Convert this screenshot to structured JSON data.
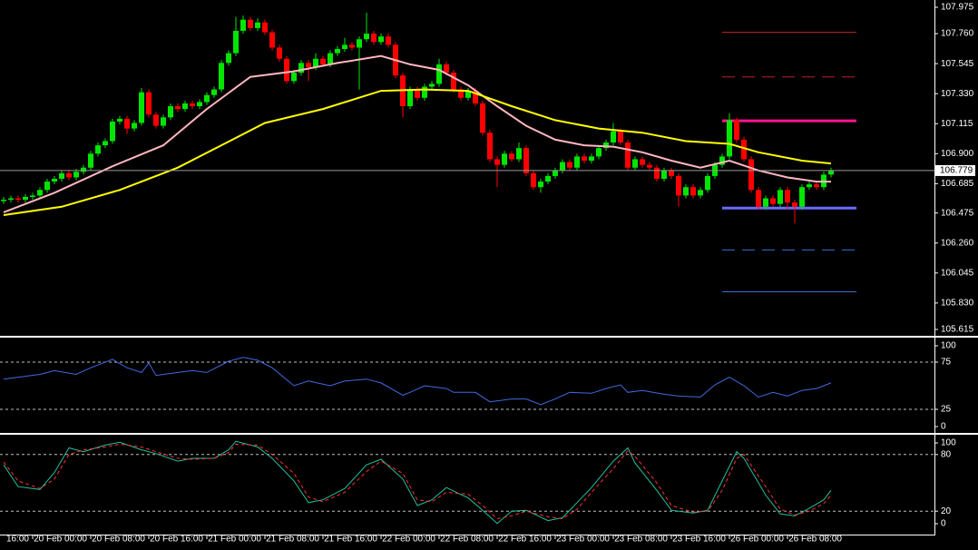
{
  "chart_data": [
    {
      "type": "candlestick",
      "up_color": "#00e600",
      "down_color": "#ff0000",
      "xlim": [
        -0.5,
        128.25
      ],
      "xticks": [
        {
          "value": -4,
          "label": "16:00"
        },
        {
          "value": 4,
          "label": "20 Feb 00:00"
        },
        {
          "value": 12,
          "label": "20 Feb 08:00"
        },
        {
          "value": 20,
          "label": "20 Feb 16:00"
        },
        {
          "value": 28,
          "label": "21 Feb 00:00"
        },
        {
          "value": 36,
          "label": "21 Feb 08:00"
        },
        {
          "value": 44,
          "label": "21 Feb 16:00"
        },
        {
          "value": 52,
          "label": "22 Feb 00:00"
        },
        {
          "value": 60,
          "label": "22 Feb 08:00"
        },
        {
          "value": 68,
          "label": "22 Feb 16:00"
        },
        {
          "value": 76,
          "label": "23 Feb 00:00"
        },
        {
          "value": 84,
          "label": "23 Feb 08:00"
        },
        {
          "value": 92,
          "label": "23 Feb 16:00"
        },
        {
          "value": 100,
          "label": "26 Feb 00:00"
        },
        {
          "value": 108,
          "label": "26 Feb 08:00"
        }
      ],
      "ylim": [
        105.595,
        108.001
      ],
      "yticks": [
        107.975,
        {
          "value": 107.76,
          "label": "107.760"
        },
        107.545,
        {
          "value": 107.33,
          "label": "107.330"
        },
        107.115,
        {
          "value": 106.9,
          "label": "106.900"
        },
        106.685,
        106.475,
        {
          "value": 106.26,
          "label": "106.260"
        },
        106.045,
        {
          "value": 105.83,
          "label": "105.830"
        },
        105.615
      ],
      "current_price": 106.779,
      "open": [
        106.56,
        106.57,
        106.58,
        106.57,
        106.59,
        106.6,
        106.64,
        106.7,
        106.72,
        106.76,
        106.73,
        106.77,
        106.8,
        106.9,
        106.96,
        106.99,
        107.13,
        107.15,
        107.08,
        107.12,
        107.34,
        107.18,
        107.1,
        107.16,
        107.24,
        107.22,
        107.26,
        107.24,
        107.27,
        107.32,
        107.36,
        107.55,
        107.62,
        107.78,
        107.86,
        107.8,
        107.84,
        107.77,
        107.66,
        107.58,
        107.42,
        107.48,
        107.55,
        107.52,
        107.58,
        107.54,
        107.62,
        107.65,
        107.68,
        107.66,
        107.72,
        107.76,
        107.7,
        107.74,
        107.68,
        107.46,
        107.24,
        107.36,
        107.3,
        107.38,
        107.4,
        107.54,
        107.48,
        107.36,
        107.3,
        107.35,
        107.26,
        107.05,
        106.86,
        106.82,
        106.9,
        106.86,
        106.94,
        106.76,
        106.66,
        106.7,
        106.74,
        106.78,
        106.84,
        106.8,
        106.88,
        106.85,
        106.88,
        106.94,
        106.98,
        107.06,
        106.98,
        106.8,
        106.86,
        106.82,
        106.8,
        106.72,
        106.78,
        106.74,
        106.6,
        106.66,
        106.6,
        106.64,
        106.74,
        106.82,
        106.88,
        107.14,
        107.0,
        106.86,
        106.64,
        106.52,
        106.58,
        106.54,
        106.64,
        106.55,
        106.52,
        106.66,
        106.68,
        106.66,
        106.75
      ],
      "high": [
        106.59,
        106.6,
        106.6,
        106.61,
        106.62,
        106.66,
        106.72,
        106.74,
        106.78,
        106.78,
        106.79,
        106.82,
        106.92,
        106.98,
        107.01,
        107.15,
        107.17,
        107.17,
        107.14,
        107.37,
        107.36,
        107.2,
        107.18,
        107.26,
        107.26,
        107.28,
        107.28,
        107.29,
        107.34,
        107.38,
        107.57,
        107.64,
        107.88,
        107.89,
        107.88,
        107.87,
        107.86,
        107.79,
        107.68,
        107.6,
        107.5,
        107.57,
        107.57,
        107.62,
        107.6,
        107.64,
        107.67,
        107.73,
        107.7,
        107.74,
        107.91,
        107.78,
        107.76,
        107.76,
        107.7,
        107.48,
        107.38,
        107.38,
        107.4,
        107.42,
        107.58,
        107.56,
        107.5,
        107.38,
        107.37,
        107.37,
        107.28,
        107.07,
        106.88,
        106.92,
        106.92,
        106.98,
        106.96,
        106.78,
        106.72,
        106.76,
        106.8,
        106.86,
        106.86,
        106.9,
        106.9,
        106.9,
        106.96,
        107.0,
        107.12,
        107.08,
        107.0,
        106.88,
        106.88,
        106.84,
        106.82,
        106.8,
        106.8,
        106.76,
        106.68,
        106.68,
        106.66,
        106.76,
        106.84,
        106.9,
        107.19,
        107.16,
        107.02,
        106.88,
        106.66,
        106.6,
        106.6,
        106.66,
        106.66,
        106.57,
        106.68,
        106.7,
        106.7,
        106.77,
        106.8
      ],
      "low": [
        106.54,
        106.55,
        106.55,
        106.55,
        106.57,
        106.58,
        106.62,
        106.68,
        106.7,
        106.71,
        106.71,
        106.75,
        106.78,
        106.88,
        106.94,
        106.97,
        107.11,
        107.04,
        107.06,
        107.1,
        107.16,
        107.08,
        107.08,
        107.14,
        107.2,
        107.2,
        107.22,
        107.22,
        107.25,
        107.3,
        107.34,
        107.53,
        107.6,
        107.76,
        107.78,
        107.78,
        107.75,
        107.64,
        107.56,
        107.4,
        107.4,
        107.46,
        107.42,
        107.5,
        107.52,
        107.52,
        107.6,
        107.63,
        107.64,
        107.36,
        107.7,
        107.68,
        107.68,
        107.66,
        107.44,
        107.16,
        107.22,
        107.28,
        107.28,
        107.36,
        107.38,
        107.46,
        107.34,
        107.28,
        107.28,
        107.24,
        107.03,
        106.84,
        106.66,
        106.8,
        106.84,
        106.84,
        106.74,
        106.64,
        106.62,
        106.68,
        106.72,
        106.76,
        106.78,
        106.78,
        106.83,
        106.83,
        106.86,
        106.92,
        106.96,
        106.96,
        106.78,
        106.78,
        106.8,
        106.78,
        106.7,
        106.7,
        106.72,
        106.52,
        106.58,
        106.58,
        106.58,
        106.62,
        106.72,
        106.8,
        106.86,
        106.98,
        106.84,
        106.62,
        106.5,
        106.5,
        106.52,
        106.52,
        106.5,
        106.4,
        106.5,
        106.64,
        106.64,
        106.64,
        106.73
      ],
      "close": [
        106.57,
        106.58,
        106.57,
        106.59,
        106.6,
        106.64,
        106.7,
        106.72,
        106.76,
        106.73,
        106.77,
        106.8,
        106.9,
        106.96,
        106.99,
        107.13,
        107.15,
        107.08,
        107.12,
        107.34,
        107.18,
        107.1,
        107.16,
        107.24,
        107.22,
        107.26,
        107.24,
        107.27,
        107.32,
        107.36,
        107.55,
        107.62,
        107.78,
        107.86,
        107.8,
        107.84,
        107.77,
        107.66,
        107.58,
        107.42,
        107.48,
        107.55,
        107.52,
        107.58,
        107.54,
        107.62,
        107.65,
        107.68,
        107.66,
        107.72,
        107.76,
        107.7,
        107.74,
        107.68,
        107.46,
        107.24,
        107.36,
        107.3,
        107.38,
        107.4,
        107.54,
        107.48,
        107.36,
        107.3,
        107.35,
        107.26,
        107.05,
        106.86,
        106.82,
        106.9,
        106.86,
        106.94,
        106.76,
        106.66,
        106.7,
        106.74,
        106.78,
        106.84,
        106.8,
        106.88,
        106.85,
        106.88,
        106.94,
        106.98,
        107.06,
        106.98,
        106.8,
        106.86,
        106.82,
        106.8,
        106.72,
        106.78,
        106.74,
        106.6,
        106.66,
        106.6,
        106.64,
        106.74,
        106.82,
        106.88,
        107.14,
        107.0,
        106.86,
        106.64,
        106.52,
        106.58,
        106.54,
        106.64,
        106.55,
        106.52,
        106.66,
        106.68,
        106.66,
        106.75,
        106.779
      ],
      "lines": [
        {
          "color": "#ffb6c1",
          "x": [
            0,
            7,
            15,
            22,
            28,
            34,
            40,
            46,
            52,
            56,
            60,
            64,
            68,
            72,
            76,
            80,
            84,
            88,
            92,
            96,
            100,
            104,
            108,
            112,
            114
          ],
          "values": [
            106.48,
            106.62,
            106.81,
            106.96,
            107.22,
            107.45,
            107.49,
            107.55,
            107.6,
            107.54,
            107.5,
            107.39,
            107.24,
            107.1,
            107.0,
            106.96,
            106.95,
            106.91,
            106.85,
            106.8,
            106.85,
            106.78,
            106.73,
            106.7,
            106.7
          ]
        },
        {
          "color": "#ffff00",
          "x": [
            0,
            8,
            16,
            24,
            30,
            36,
            44,
            52,
            58,
            64,
            70,
            76,
            82,
            88,
            94,
            100,
            104,
            110,
            114
          ],
          "values": [
            106.46,
            106.52,
            106.64,
            106.8,
            106.96,
            107.12,
            107.22,
            107.35,
            107.36,
            107.35,
            107.24,
            107.14,
            107.08,
            107.05,
            106.99,
            106.97,
            106.91,
            106.85,
            106.83
          ]
        }
      ],
      "levels": [
        {
          "value": 107.77,
          "color": "#c02020",
          "style": "solid"
        },
        {
          "value": 107.45,
          "color": "#c02020",
          "style": "dashed"
        },
        {
          "value": 107.135,
          "color": "#ff1493",
          "style": "thick"
        },
        {
          "value": 106.51,
          "color": "#6a6aff",
          "style": "thick"
        },
        {
          "value": 106.21,
          "color": "#3a6fd8",
          "style": "dashed"
        },
        {
          "value": 105.91,
          "color": "#3a6fd8",
          "style": "solid"
        }
      ]
    },
    {
      "type": "line",
      "ylim": [
        0,
        100
      ],
      "yticks": [
        100,
        75,
        25,
        0
      ],
      "series": [
        {
          "color": "#4169e1",
          "style": "solid",
          "x": [
            0,
            5,
            7,
            10,
            12,
            15,
            17,
            19,
            20,
            21,
            24,
            26,
            28,
            31,
            33,
            35,
            37,
            40,
            42,
            45,
            47,
            50,
            52,
            55,
            56,
            58,
            61,
            62,
            65,
            67,
            70,
            72,
            74,
            76,
            78,
            81,
            83,
            85,
            86,
            88,
            91,
            93,
            96,
            98,
            100,
            102,
            104,
            106,
            108,
            110,
            112,
            114
          ],
          "values": [
            57,
            62,
            66,
            62,
            69,
            78,
            69,
            64,
            74,
            61,
            64,
            66,
            64,
            76,
            80,
            77,
            69,
            50,
            55,
            50,
            55,
            57,
            53,
            40,
            43,
            50,
            47,
            43,
            43,
            33,
            36,
            36,
            30,
            36,
            43,
            42,
            47,
            51,
            43,
            45,
            41,
            39,
            38,
            51,
            59,
            50,
            38,
            43,
            39,
            45,
            47,
            53
          ]
        }
      ]
    },
    {
      "type": "line",
      "ylim": [
        0,
        100
      ],
      "yticks": [
        100,
        80,
        20,
        0
      ],
      "series": [
        {
          "color": "#20c0a0",
          "style": "solid",
          "x": [
            0,
            2,
            5,
            7,
            9,
            11,
            14,
            16,
            19,
            21,
            24,
            26,
            29,
            31,
            32,
            35,
            37,
            40,
            42,
            44,
            47,
            50,
            52,
            55,
            57,
            59,
            61,
            64,
            66,
            68,
            70,
            72,
            75,
            77,
            79,
            81,
            84,
            86,
            87,
            90,
            92,
            95,
            97,
            99,
            101,
            102,
            105,
            107,
            109,
            111,
            113,
            114
          ],
          "values": [
            69,
            46,
            43,
            61,
            87,
            83,
            90,
            93,
            85,
            81,
            73,
            76,
            76,
            85,
            94,
            88,
            76,
            52,
            29,
            32,
            44,
            69,
            75,
            54,
            26,
            32,
            45,
            34,
            21,
            7,
            20,
            21,
            10,
            13,
            29,
            45,
            73,
            87,
            71,
            42,
            21,
            18,
            21,
            52,
            83,
            76,
            37,
            17,
            15,
            23,
            32,
            42
          ]
        },
        {
          "color": "#ff3030",
          "style": "dashed",
          "x": [
            0,
            2,
            5,
            7,
            9,
            11,
            14,
            16,
            19,
            21,
            24,
            26,
            29,
            31,
            32,
            35,
            37,
            40,
            42,
            44,
            47,
            50,
            52,
            55,
            57,
            59,
            61,
            64,
            66,
            68,
            70,
            72,
            75,
            77,
            79,
            81,
            84,
            86,
            87,
            90,
            92,
            95,
            97,
            99,
            101,
            102,
            105,
            107,
            109,
            111,
            113,
            114
          ],
          "values": [
            72,
            52,
            44,
            54,
            80,
            85,
            88,
            91,
            88,
            83,
            76,
            75,
            76,
            82,
            91,
            90,
            80,
            60,
            35,
            30,
            40,
            62,
            73,
            60,
            32,
            30,
            40,
            38,
            26,
            12,
            15,
            20,
            14,
            12,
            22,
            40,
            65,
            84,
            78,
            50,
            26,
            19,
            20,
            42,
            76,
            80,
            46,
            22,
            16,
            20,
            28,
            37
          ]
        }
      ]
    }
  ]
}
